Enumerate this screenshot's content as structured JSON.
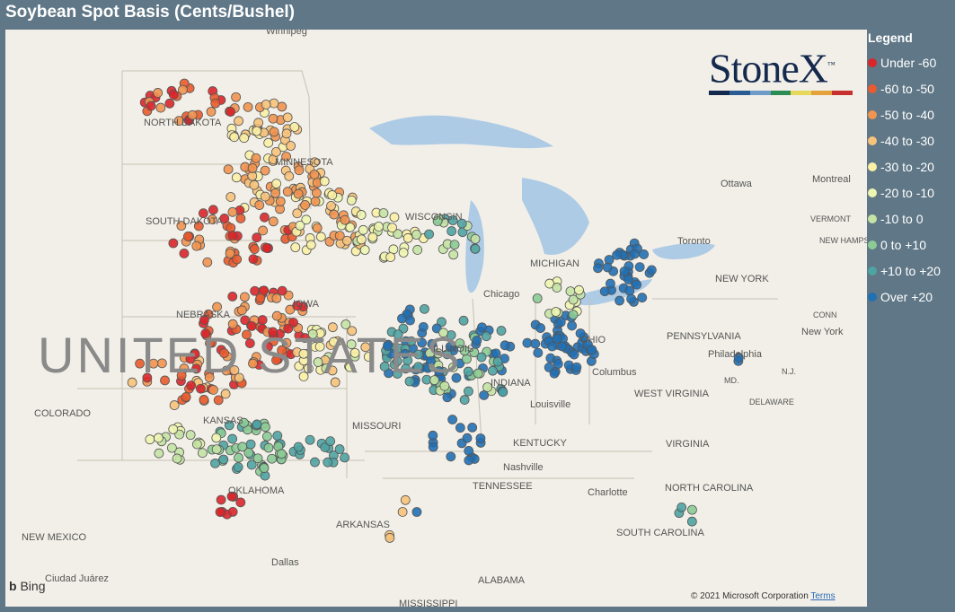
{
  "title": "Soybean Spot Basis (Cents/Bushel)",
  "legend": {
    "title": "Legend",
    "items": [
      {
        "label": "Under -60",
        "color": "#d9262b"
      },
      {
        "label": "-60 to -50",
        "color": "#e95b2e"
      },
      {
        "label": "-50 to -40",
        "color": "#f19450"
      },
      {
        "label": "-40 to -30",
        "color": "#f7c27a"
      },
      {
        "label": "-30 to -20",
        "color": "#faf0a6"
      },
      {
        "label": "-20 to -10",
        "color": "#edf5b0"
      },
      {
        "label": "-10 to 0",
        "color": "#c5e3a5"
      },
      {
        "label": "0 to +10",
        "color": "#8ccb96"
      },
      {
        "label": "+10 to +20",
        "color": "#4ea3a3"
      },
      {
        "label": "Over +20",
        "color": "#2170b4"
      }
    ]
  },
  "logo": {
    "text": "StoneX",
    "trademark": "™"
  },
  "map_labels": {
    "winnipeg": "Winnipeg",
    "north_dakota": "NORTH DAKOTA",
    "minnesota": "MINNESOTA",
    "south_dakota": "SOUTH DAKOTA",
    "wisconsin": "WISCONSIN",
    "michigan": "MICHIGAN",
    "nebraska": "NEBRASKA",
    "iowa": "IOWA",
    "united_states": "UNITED STATES",
    "colorado": "COLORADO",
    "kansas": "KANSAS",
    "missouri": "MISSOURI",
    "illinois": "ILLINOIS",
    "indiana": "INDIANA",
    "ohio": "OHIO",
    "chicago": "Chicago",
    "columbus": "Columbus",
    "louisville": "Louisville",
    "kentucky": "KENTUCKY",
    "tennessee": "TENNESSEE",
    "nashville": "Nashville",
    "oklahoma": "OKLAHOMA",
    "arkansas": "ARKANSAS",
    "new_mexico": "NEW MEXICO",
    "dallas": "Dallas",
    "ciudad_juarez": "Ciudad Juárez",
    "alabama": "ALABAMA",
    "mississippi": "MISSISSIPPI",
    "west_virginia": "WEST VIRGINIA",
    "virginia": "VIRGINIA",
    "pennsylvania": "PENNSYLVANIA",
    "new_york_state": "NEW YORK",
    "new_york_city": "New York",
    "philadelphia": "Philadelphia",
    "toronto": "Toronto",
    "ottawa": "Ottawa",
    "montreal": "Montreal",
    "vermont": "VERMONT",
    "new_hampshire": "NEW HAMPSHIRE",
    "conn": "CONN",
    "nj": "N.J.",
    "md": "MD.",
    "delaware": "DELAWARE",
    "north_carolina": "NORTH CAROLINA",
    "south_carolina": "SOUTH CAROLINA",
    "charlotte": "Charlotte"
  },
  "bing_label": "Bing",
  "copyright": "© 2021 Microsoft Corporation",
  "terms_label": "Terms"
}
